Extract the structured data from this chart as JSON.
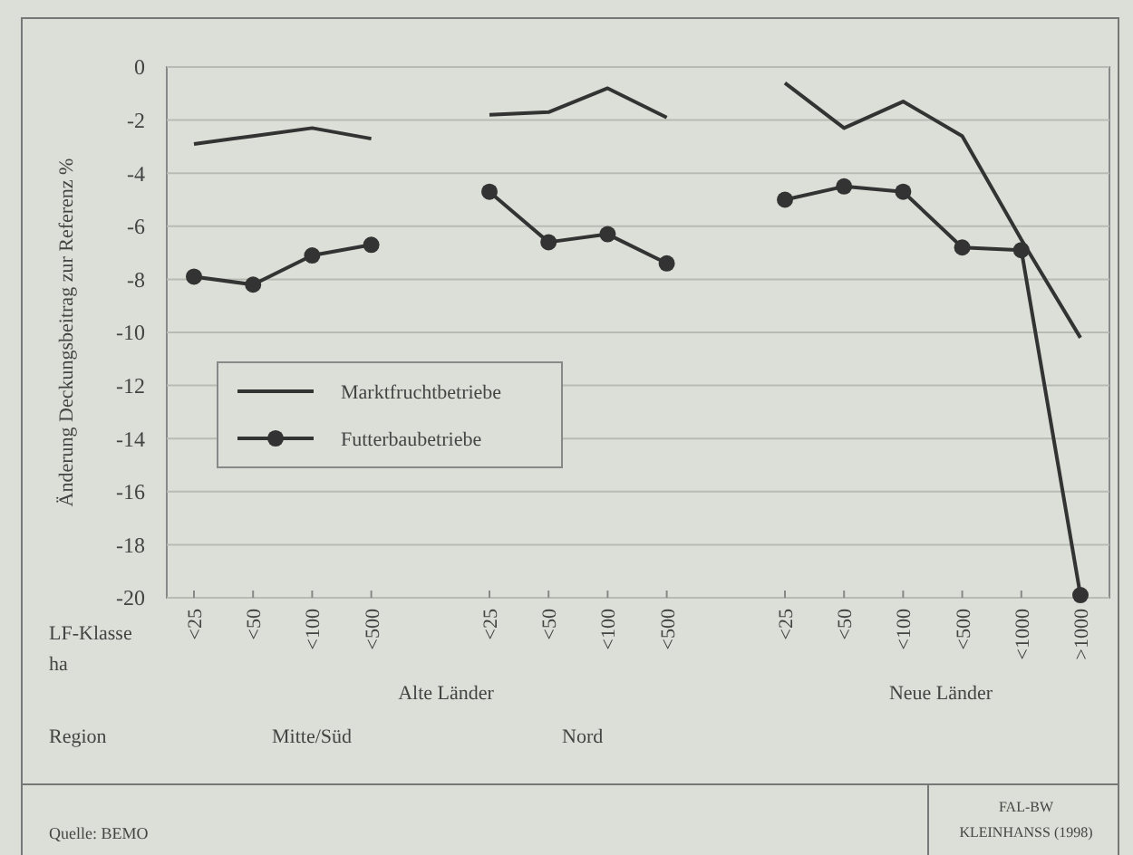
{
  "chart_data": {
    "type": "line",
    "ylabel": "Änderung Deckungsbeitrag zur Referenz %",
    "categories": [
      "<25",
      "<50",
      "<100",
      "<500",
      null,
      "<25",
      "<50",
      "<100",
      "<500",
      null,
      "<25",
      "<50",
      "<100",
      "<500",
      "<1000",
      ">1000"
    ],
    "series": [
      {
        "name": "Marktfruchtbetriebe",
        "color": "#333333",
        "marker": "none",
        "values": [
          -2.9,
          -2.6,
          -2.3,
          -2.7,
          null,
          -1.8,
          -1.7,
          -0.8,
          -1.9,
          null,
          -0.6,
          -2.3,
          -1.3,
          -2.6,
          -6.5,
          -10.2
        ]
      },
      {
        "name": "Futterbaubetriebe",
        "color": "#333333",
        "marker": "circle",
        "values": [
          -7.9,
          -8.2,
          -7.1,
          -6.7,
          null,
          -4.7,
          -6.6,
          -6.3,
          -7.4,
          null,
          -5.0,
          -4.5,
          -4.7,
          -6.8,
          -6.9,
          -19.9
        ]
      }
    ],
    "ylim": [
      -20,
      0
    ],
    "yticks": [
      {
        "value": -20,
        "label": "-20"
      },
      {
        "value": -18,
        "label": "-18"
      },
      {
        "value": -16,
        "label": "-16"
      },
      {
        "value": -14,
        "label": "-14"
      },
      {
        "value": -12,
        "label": "-12"
      },
      {
        "value": -10,
        "label": "-10"
      },
      {
        "value": -8,
        "label": "-8"
      },
      {
        "value": -6,
        "label": "-6"
      },
      {
        "value": -4,
        "label": "-4"
      },
      {
        "value": -2,
        "label": "-2"
      },
      0
    ],
    "grid": "y",
    "legend": "left",
    "line_style": "solid",
    "annotations": [
      "LF-Klasse",
      "ha",
      "Alte Länder",
      "Neue Länder",
      "Region",
      "Mitte/Süd",
      "Nord",
      "Quelle: BEMO",
      "FAL-BW",
      "KLEINHANSS (1998)"
    ]
  }
}
